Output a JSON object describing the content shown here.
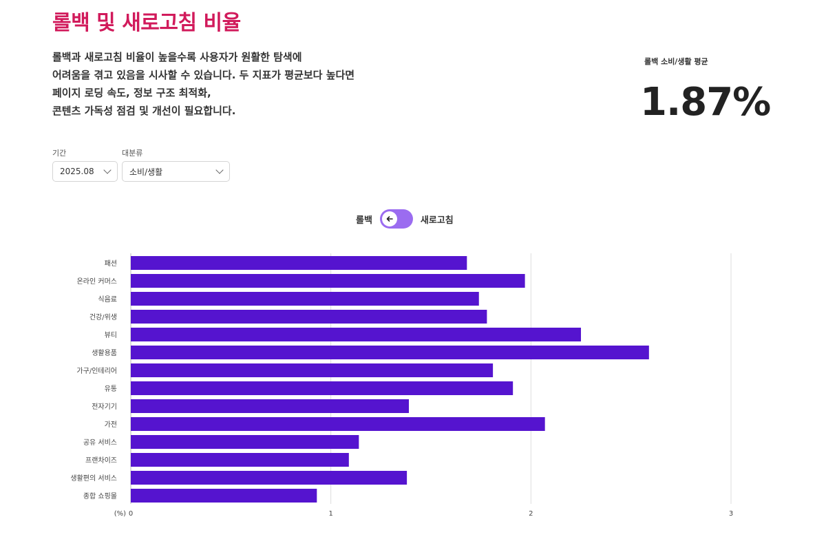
{
  "header": {
    "title": "롤백 및 새로고침 비율",
    "description_lines": [
      "롤백과 새로고침 비율이 높을수록 사용자가 원활한 탐색에",
      "어려움을 겪고 있음을 시사할 수 있습니다. 두 지표가 평균보다 높다면",
      "페이지 로딩 속도, 정보 구조 최적화,",
      "콘텐츠 가독성 점검 및 개선이 필요합니다."
    ]
  },
  "summary": {
    "label": "롤백 소비/생활 평균",
    "value": "1.87%"
  },
  "filters": {
    "period": {
      "label": "기간",
      "value": "2025.08"
    },
    "category": {
      "label": "대분류",
      "value": "소비/생활"
    }
  },
  "toggle": {
    "left_label": "롤백",
    "right_label": "새로고침",
    "selected": "롤백",
    "knob_icon": "arrow-left-icon"
  },
  "colors": {
    "title": "#d11a5b",
    "bar": "#5514cf",
    "toggle": "#9b6cf0"
  },
  "chart_data": {
    "type": "bar",
    "orientation": "horizontal",
    "categories": [
      "패션",
      "온라인 커머스",
      "식음료",
      "건강/위생",
      "뷰티",
      "생활용품",
      "가구/인테리어",
      "유통",
      "전자기기",
      "가전",
      "공유 서비스",
      "프랜차이즈",
      "생활편의 서비스",
      "종합 쇼핑몰"
    ],
    "values": [
      1.68,
      1.97,
      1.74,
      1.78,
      2.25,
      2.59,
      1.81,
      1.91,
      1.39,
      2.07,
      1.14,
      1.09,
      1.38,
      0.93
    ],
    "xlim": [
      0,
      3
    ],
    "xticks": [
      0,
      1,
      2,
      3
    ],
    "unit_label": "(%)",
    "grid": true
  }
}
